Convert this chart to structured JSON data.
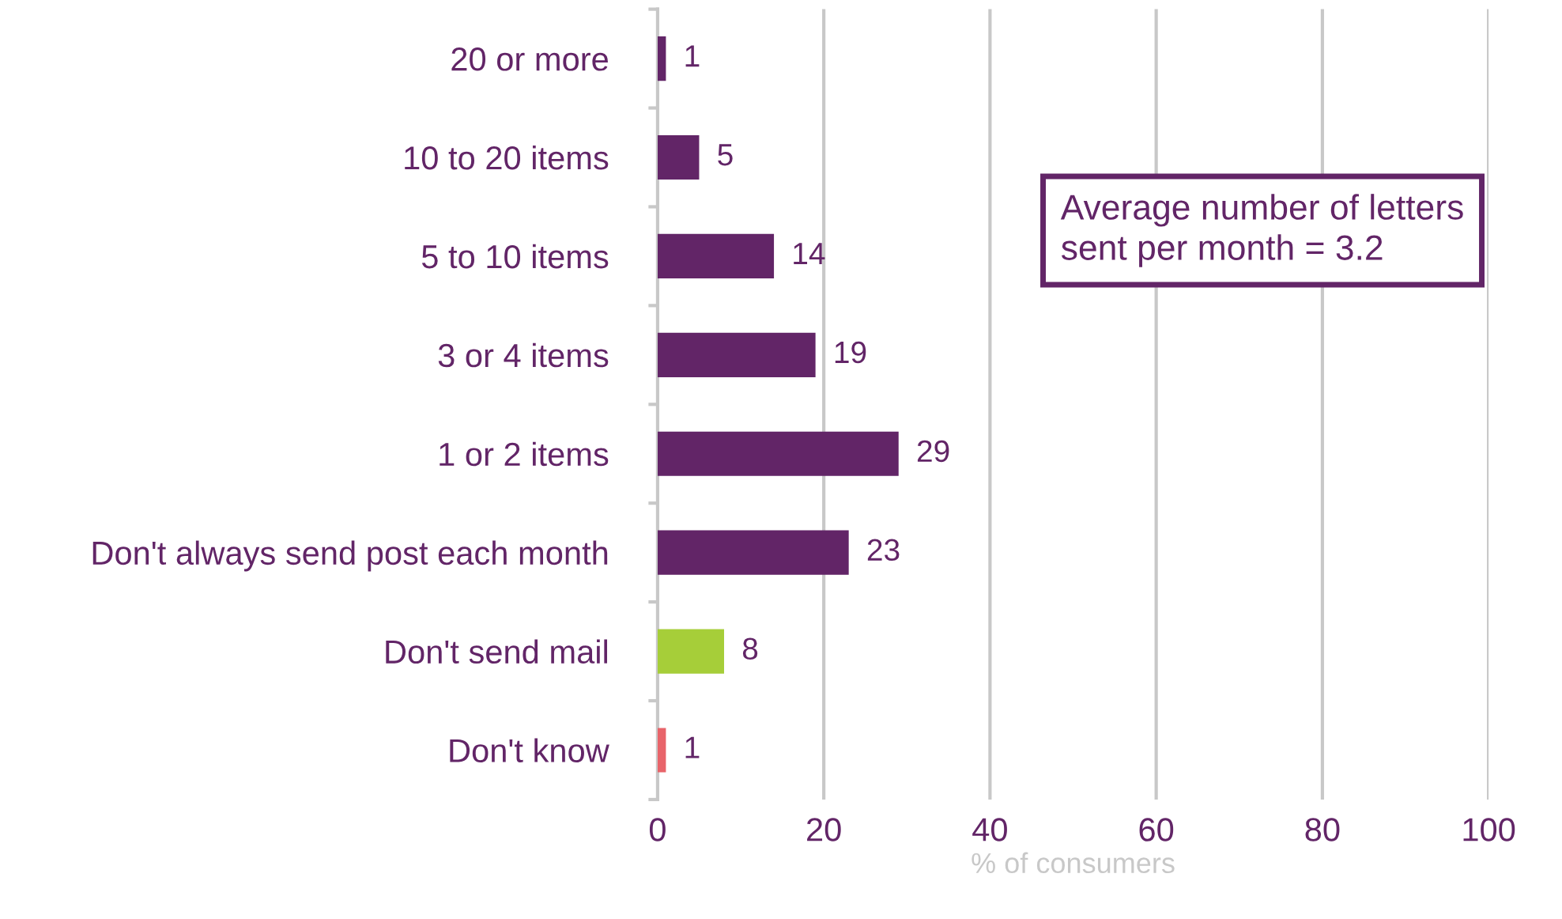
{
  "chart_data": {
    "type": "bar",
    "orientation": "horizontal",
    "categories": [
      "20 or more",
      "10 to 20 items",
      "5 to 10 items",
      "3 or 4 items",
      "1 or 2 items",
      "Don't always send post each month",
      "Don't send mail",
      "Don't know"
    ],
    "values": [
      1,
      5,
      14,
      19,
      29,
      23,
      8,
      1
    ],
    "colors": [
      "#622567",
      "#622567",
      "#622567",
      "#622567",
      "#622567",
      "#622567",
      "#a6ce39",
      "#e8646a"
    ],
    "xlim": [
      0,
      100
    ],
    "xticks": [
      0,
      20,
      40,
      60,
      80,
      100
    ],
    "grid": "x",
    "data_labels": true,
    "xlabel": "% of consumers",
    "annotations": [
      "Average number of letters\nsent per month = 3.2"
    ]
  }
}
